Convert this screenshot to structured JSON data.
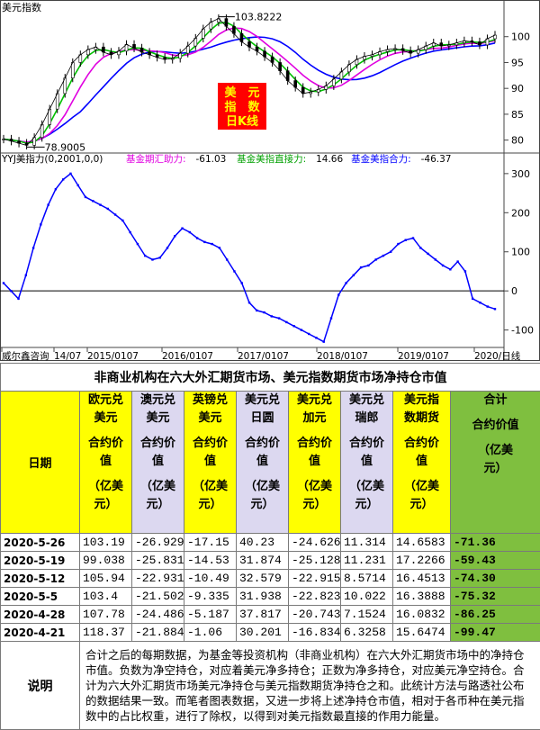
{
  "chart_data": [
    {
      "type": "line",
      "title": "美元指数",
      "price_label_high": "103.8222",
      "price_label_low": "78.9005",
      "label_box_lines": [
        "美　元",
        "指　数",
        "日K线"
      ],
      "y_ticks": [
        80,
        85,
        90,
        95,
        100
      ],
      "ylim": [
        77.5,
        105
      ],
      "series": [
        {
          "role": "price",
          "color": "#000000",
          "values": [
            80.2,
            79.8,
            79.4,
            79.0,
            80.5,
            83,
            86,
            89,
            92,
            95,
            96.5,
            97.5,
            98,
            97,
            96.5,
            97.2,
            98.5,
            97.8,
            97,
            96.5,
            96,
            95.6,
            95.8,
            96.8,
            98.2,
            99.7,
            101.5,
            102.8,
            103.5,
            102,
            100.6,
            99,
            98,
            97.2,
            96.1,
            95,
            93.4,
            91.5,
            90.2,
            89,
            89.3,
            89.8,
            90.5,
            91.8,
            93.2,
            94.6,
            95.6,
            96.2,
            96.5,
            97.1,
            97.5,
            97.7,
            97.3,
            96.8,
            97.5,
            98.2,
            98.8,
            98.2,
            98.4,
            98.8,
            99.2,
            99,
            98.4,
            99.6,
            100.3
          ]
        },
        {
          "role": "ma-fast",
          "color": "#00c000"
        },
        {
          "role": "ma-mid",
          "color": "#e000e0"
        },
        {
          "role": "ma-slow",
          "color": "#0000ff"
        }
      ]
    },
    {
      "type": "line",
      "title": "YYJ美指力(0,2001,0,0)",
      "legend": [
        {
          "name": "基金期汇助力:",
          "value": "-61.03",
          "color": "#e000e0"
        },
        {
          "name": "基金美指直接力:",
          "value": "14.66",
          "color": "#00a000"
        },
        {
          "name": "基金美指合力:",
          "value": "-46.37",
          "color": "#0000ff"
        }
      ],
      "y_ticks": [
        300,
        200,
        100,
        0,
        -100
      ],
      "ylim": [
        -140,
        325
      ],
      "x_ticks": [
        "威尔鑫咨询",
        "14/07",
        "2015/0107",
        "2016/0107",
        "2017/0107",
        "2018/0107",
        "2019/0107",
        "2020/日线"
      ],
      "series": [
        {
          "name": "基金美指合力",
          "color": "#0000ff",
          "values": [
            20,
            0,
            -20,
            40,
            110,
            170,
            220,
            260,
            285,
            300,
            270,
            240,
            230,
            220,
            210,
            195,
            180,
            150,
            120,
            90,
            80,
            85,
            110,
            140,
            160,
            150,
            135,
            125,
            120,
            110,
            80,
            50,
            20,
            -30,
            -50,
            -55,
            -65,
            -70,
            -80,
            -90,
            -100,
            -110,
            -120,
            -130,
            -70,
            -10,
            20,
            40,
            60,
            65,
            80,
            90,
            100,
            120,
            130,
            135,
            110,
            95,
            80,
            65,
            55,
            75,
            50,
            -20,
            -30,
            -40,
            -46.37
          ]
        }
      ]
    }
  ],
  "table": {
    "title": "非商业机构在六大外汇期货市场、美元指数期货市场净持仓市值",
    "date_header": "日期",
    "columns": [
      {
        "name_lines": [
          "欧元兑",
          "美元"
        ],
        "unit_lines": [
          "合约价",
          "值"
        ],
        "yi_lines": [
          "（亿美",
          "元）"
        ],
        "style": "yellow"
      },
      {
        "name_lines": [
          "澳元兑",
          "美元"
        ],
        "unit_lines": [
          "合约价",
          "值"
        ],
        "yi_lines": [
          "（亿美",
          "元）"
        ],
        "style": "lav"
      },
      {
        "name_lines": [
          "英镑兑",
          "美元"
        ],
        "unit_lines": [
          "合约价",
          "值"
        ],
        "yi_lines": [
          "（亿美",
          "元）"
        ],
        "style": "yellow"
      },
      {
        "name_lines": [
          "美元兑",
          "日圆"
        ],
        "unit_lines": [
          "合约价",
          "值"
        ],
        "yi_lines": [
          "（亿美",
          "元）"
        ],
        "style": "lav"
      },
      {
        "name_lines": [
          "美元兑",
          "加元"
        ],
        "unit_lines": [
          "合约价",
          "值"
        ],
        "yi_lines": [
          "（亿美",
          "元）"
        ],
        "style": "yellow"
      },
      {
        "name_lines": [
          "美元兑",
          "瑞郎"
        ],
        "unit_lines": [
          "合约价",
          "值"
        ],
        "yi_lines": [
          "（亿美",
          "元）"
        ],
        "style": "lav"
      },
      {
        "name_lines": [
          "美元指",
          "数期货"
        ],
        "unit_lines": [
          "合约价",
          "值"
        ],
        "yi_lines": [
          "（亿美",
          "元）"
        ],
        "style": "yellow"
      },
      {
        "name_lines": [
          "合计"
        ],
        "unit_lines": [
          "合约价值"
        ],
        "yi_lines": [
          "（亿美",
          "元）"
        ],
        "style": "green"
      }
    ],
    "rows": [
      {
        "date": "2020-5-26",
        "values": [
          "103.19",
          "-26.929",
          "-17.15",
          "40.23",
          "-24.626",
          "11.314",
          "14.6583"
        ],
        "total": "-71.36"
      },
      {
        "date": "2020-5-19",
        "values": [
          "99.038",
          "-25.831",
          "-14.53",
          "31.874",
          "-25.128",
          "11.231",
          "17.2266"
        ],
        "total": "-59.43"
      },
      {
        "date": "2020-5-12",
        "values": [
          "105.94",
          "-22.931",
          "-10.49",
          "32.579",
          "-22.915",
          "8.5714",
          "16.4513"
        ],
        "total": "-74.30"
      },
      {
        "date": "2020-5-5",
        "values": [
          "103.4",
          "-21.502",
          "-9.335",
          "31.938",
          "-22.823",
          "10.022",
          "16.3888"
        ],
        "total": "-75.32"
      },
      {
        "date": "2020-4-28",
        "values": [
          "107.78",
          "-24.486",
          "-5.187",
          "37.817",
          "-20.743",
          "7.1524",
          "16.0832"
        ],
        "total": "-86.25"
      },
      {
        "date": "2020-4-21",
        "values": [
          "118.37",
          "-21.884",
          "-1.06",
          "30.201",
          "-16.834",
          "6.3258",
          "15.6474"
        ],
        "total": "-99.47"
      }
    ],
    "note_label": "说明",
    "note_text": "合计之后的每期数据，为基金等投资机构（非商业机构）在六大外汇期货市场中的净持仓市值。负数为净空持仓，对应着美元净多持仓；正数为净多持仓，对应美元净空持仓。合计为六大外汇期货市场美元净持仓与美元指数期货净持仓之和。此统计方法与路透社公布的数据结果一致。而笔者图表数据，又进一步将上述净持仓市值，相对于各币种在美元指数中的占比权重，进行了除权，以得到对美元指数最直接的作用力能量。"
  }
}
